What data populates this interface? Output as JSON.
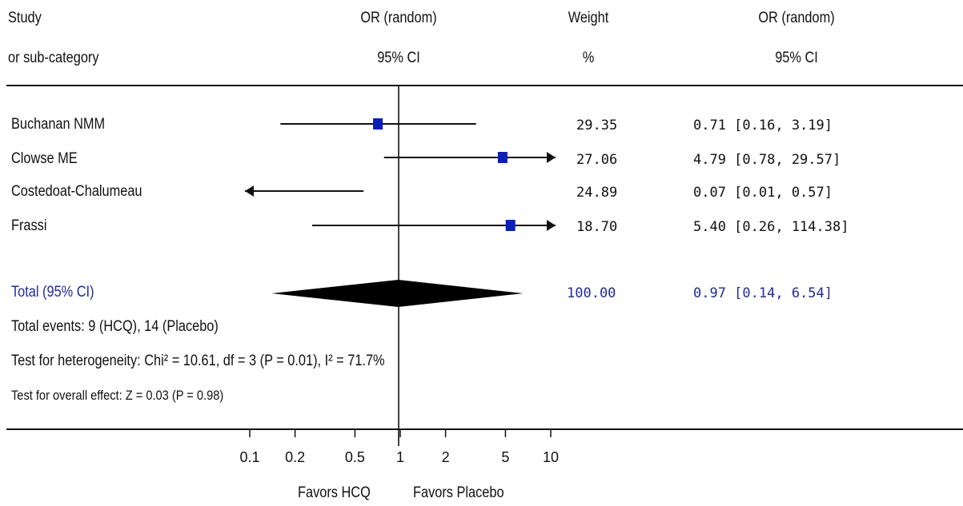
{
  "headers": {
    "study": [
      "Study",
      "or sub-category"
    ],
    "or_plot": [
      "OR (random)",
      "95% CI"
    ],
    "weight": [
      "Weight",
      "%"
    ],
    "or_text": [
      "OR (random)",
      "95% CI"
    ]
  },
  "studies": [
    {
      "name": "Buchanan NMM",
      "or": 0.71,
      "lo": 0.16,
      "hi": 3.19,
      "weight_text": "29.35",
      "ci_text": "0.71 [0.16, 3.19]"
    },
    {
      "name": "Clowse ME",
      "or": 4.79,
      "lo": 0.78,
      "hi": 29.57,
      "weight_text": "27.06",
      "ci_text": "4.79 [0.78, 29.57]"
    },
    {
      "name": "Costedoat-Chalumeau",
      "or": 0.07,
      "lo": 0.01,
      "hi": 0.57,
      "weight_text": "24.89",
      "ci_text": "0.07 [0.01, 0.57]"
    },
    {
      "name": "Frassi",
      "or": 5.4,
      "lo": 0.26,
      "hi": 114.38,
      "weight_text": "18.70",
      "ci_text": "5.40 [0.26, 114.38]"
    }
  ],
  "total": {
    "label": "Total (95% CI)",
    "or": 0.97,
    "lo": 0.14,
    "hi": 6.54,
    "weight_text": "100.00",
    "ci_text": "0.97 [0.14, 6.54]"
  },
  "notes": {
    "events": "Total events: 9 (HCQ), 14 (Placebo)",
    "heterogeneity": "Test for heterogeneity: Chi² = 10.61, df = 3 (P = 0.01), I² = 71.7%",
    "overall": "Test for overall effect: Z = 0.03 (P = 0.98)"
  },
  "axis": {
    "ticks": [
      0.1,
      0.2,
      0.5,
      1,
      2,
      5,
      10
    ],
    "tick_labels": [
      "0.1",
      "0.2",
      "0.5",
      "1",
      "2",
      "5",
      "10"
    ],
    "left_label": "Favors HCQ",
    "right_label": "Favors Placebo"
  },
  "colors": {
    "marker": "#0a1fb8",
    "total_text": "#1f2a9a",
    "line": "#111111"
  },
  "chart_data": {
    "type": "forest",
    "scale": "log",
    "xlim": [
      0.1,
      10
    ],
    "categories": [
      "Buchanan NMM",
      "Clowse ME",
      "Costedoat-Chalumeau",
      "Frassi"
    ],
    "series": [
      {
        "name": "OR (random)",
        "values": [
          0.71,
          4.79,
          0.07,
          5.4
        ],
        "ci_low": [
          0.16,
          0.78,
          0.01,
          0.26
        ],
        "ci_high": [
          3.19,
          29.57,
          0.57,
          114.38
        ],
        "weight": [
          29.35,
          27.06,
          24.89,
          18.7
        ]
      }
    ],
    "pooled": {
      "value": 0.97,
      "ci_low": 0.14,
      "ci_high": 6.54,
      "weight": 100.0
    }
  }
}
